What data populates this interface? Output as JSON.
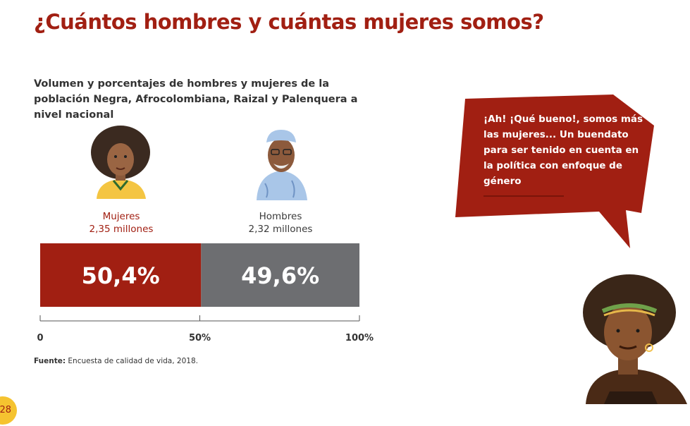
{
  "page": {
    "title": "¿Cuántos hombres y cuántas mujeres somos?",
    "page_number": "28"
  },
  "chart_data": {
    "type": "bar",
    "stacked": true,
    "orientation": "horizontal",
    "title": "Volumen y porcentajes de hombres y mujeres de la población Negra, Afrocolombiana, Raizal y Palenquera a nivel nacional",
    "series": [
      {
        "name": "Mujeres",
        "volume": "2,35 millones",
        "value": 50.4,
        "label": "50,4%",
        "color": "#a11f12"
      },
      {
        "name": "Hombres",
        "volume": "2,32 millones",
        "value": 49.6,
        "label": "49,6%",
        "color": "#6d6e71"
      }
    ],
    "xlim": [
      0,
      100
    ],
    "ticks": [
      {
        "value": 0,
        "label": "0"
      },
      {
        "value": 50,
        "label": "50%"
      },
      {
        "value": 100,
        "label": "100%"
      }
    ],
    "grid": false
  },
  "source": {
    "label": "Fuente:",
    "text": " Encuesta de calidad de vida, 2018."
  },
  "bubble": {
    "text": "¡Ah! ¡Qué bueno!, somos más las mujeres... Un buendato para ser tenido en cuenta en la política con enfoque de género",
    "color": "#a11f12"
  },
  "icons": [
    "woman-portrait-icon",
    "man-portrait-icon",
    "woman-illustration-icon"
  ]
}
